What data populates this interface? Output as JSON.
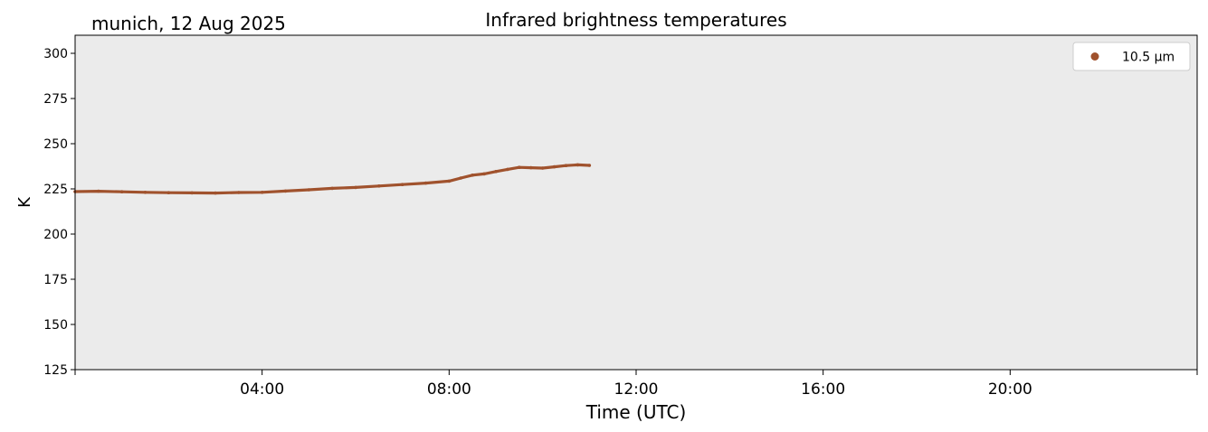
{
  "chart_data": {
    "type": "scatter",
    "title": "Infrared brightness temperatures",
    "subtitle": "munich, 12 Aug 2025",
    "xlabel": "Time (UTC)",
    "ylabel": "K",
    "xlim_hours": [
      0,
      24
    ],
    "ylim": [
      125,
      310
    ],
    "x_ticks": [
      {
        "hour": 4,
        "label": "04:00"
      },
      {
        "hour": 8,
        "label": "08:00"
      },
      {
        "hour": 12,
        "label": "12:00"
      },
      {
        "hour": 16,
        "label": "16:00"
      },
      {
        "hour": 20,
        "label": "20:00"
      }
    ],
    "x_minor_ticks_hours": [
      0,
      24
    ],
    "y_ticks": [
      125,
      150,
      175,
      200,
      225,
      250,
      275,
      300
    ],
    "grid": false,
    "legend_position": "top-right",
    "plot_background": "#ebebeb",
    "series": [
      {
        "name": "10.5 µm",
        "color": "#a0522d",
        "x_hours": [
          0.0,
          0.5,
          1.0,
          1.5,
          2.0,
          2.5,
          3.0,
          3.5,
          4.0,
          4.5,
          5.0,
          5.5,
          6.0,
          6.5,
          7.0,
          7.5,
          8.0,
          8.25,
          8.5,
          8.75,
          9.0,
          9.25,
          9.5,
          9.75,
          10.0,
          10.25,
          10.5,
          10.75,
          11.0
        ],
        "values": [
          223.5,
          223.7,
          223.4,
          223.1,
          222.9,
          222.8,
          222.7,
          223.0,
          223.1,
          223.8,
          224.5,
          225.3,
          225.8,
          226.6,
          227.4,
          228.2,
          229.3,
          231.0,
          232.6,
          233.3,
          234.6,
          235.8,
          236.9,
          236.7,
          236.5,
          237.2,
          237.9,
          238.3,
          238.0
        ]
      }
    ]
  }
}
